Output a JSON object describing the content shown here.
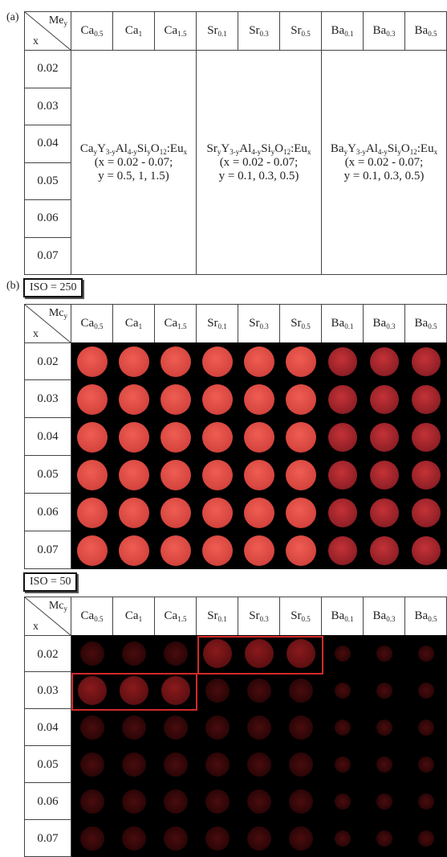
{
  "panel_a": {
    "label": "(a)",
    "corner_top": "Me",
    "corner_top_sub": "y",
    "corner_bottom": "x",
    "columns": [
      {
        "base": "Ca",
        "sub": "0.5"
      },
      {
        "base": "Ca",
        "sub": "1"
      },
      {
        "base": "Ca",
        "sub": "1.5"
      },
      {
        "base": "Sr",
        "sub": "0.1"
      },
      {
        "base": "Sr",
        "sub": "0.3"
      },
      {
        "base": "Sr",
        "sub": "0.5"
      },
      {
        "base": "Ba",
        "sub": "0.1"
      },
      {
        "base": "Ba",
        "sub": "0.3"
      },
      {
        "base": "Ba",
        "sub": "0.5"
      }
    ],
    "rows": [
      "0.02",
      "0.03",
      "0.04",
      "0.05",
      "0.06",
      "0.07"
    ],
    "formulas": [
      {
        "el": "Ca",
        "line2": "(x = 0.02 - 0.07;",
        "line3": "y = 0.5, 1, 1.5)"
      },
      {
        "el": "Sr",
        "line2": "(x = 0.02 - 0.07;",
        "line3": "y = 0.1, 0.3, 0.5)"
      },
      {
        "el": "Ba",
        "line2": "(x = 0.02 - 0.07;",
        "line3": "y = 0.1, 0.3, 0.5)"
      }
    ]
  },
  "panel_b": {
    "label": "(b)",
    "iso_top": "ISO = 250",
    "iso_bottom": "ISO = 50",
    "corner_top": "Mc",
    "corner_top_sub": "y",
    "corner_bottom": "x"
  },
  "colors": {
    "spot_bright": "#e8574f",
    "spot_dim": "#5a0f10",
    "highlight_box": "#d42a2a"
  }
}
